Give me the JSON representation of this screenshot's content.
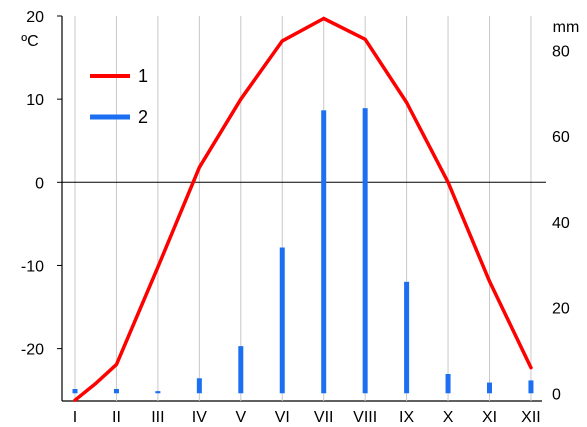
{
  "chart_data": {
    "type": "bar+line",
    "title": "",
    "categories": [
      "I",
      "II",
      "III",
      "IV",
      "V",
      "VI",
      "VII",
      "VIII",
      "IX",
      "X",
      "XI",
      "XII"
    ],
    "series": [
      {
        "name": "1",
        "type": "line",
        "axis": "left",
        "color": "#ff0000",
        "x": [
          0.0,
          0.5,
          1.0,
          2.0,
          3.0,
          4.0,
          5.0,
          6.0,
          7.0,
          8.0,
          9.0,
          10.0,
          11.0
        ],
        "values": [
          -26.2,
          -24.2,
          -21.9,
          -10.2,
          1.8,
          10.0,
          17.0,
          19.7,
          17.2,
          9.6,
          0.0,
          -11.9,
          -22.3
        ]
      },
      {
        "name": "2",
        "type": "bar",
        "axis": "right",
        "color": "#1c6ff0",
        "values": [
          1,
          1,
          0.5,
          3.5,
          11,
          34,
          66,
          66.5,
          26,
          4.5,
          2.5,
          3
        ]
      }
    ],
    "left_axis": {
      "label": "ºC",
      "ticks": [
        20,
        10,
        0,
        -10,
        -20
      ],
      "range": [
        -26.3,
        20
      ]
    },
    "right_axis": {
      "label": "mm",
      "ticks": [
        80,
        60,
        40,
        20,
        0
      ],
      "range": [
        -1.8,
        88
      ]
    },
    "grid": "vertical",
    "zero_line": true,
    "legend": {
      "placement": "top-left",
      "entries": [
        "1",
        "2"
      ]
    }
  }
}
